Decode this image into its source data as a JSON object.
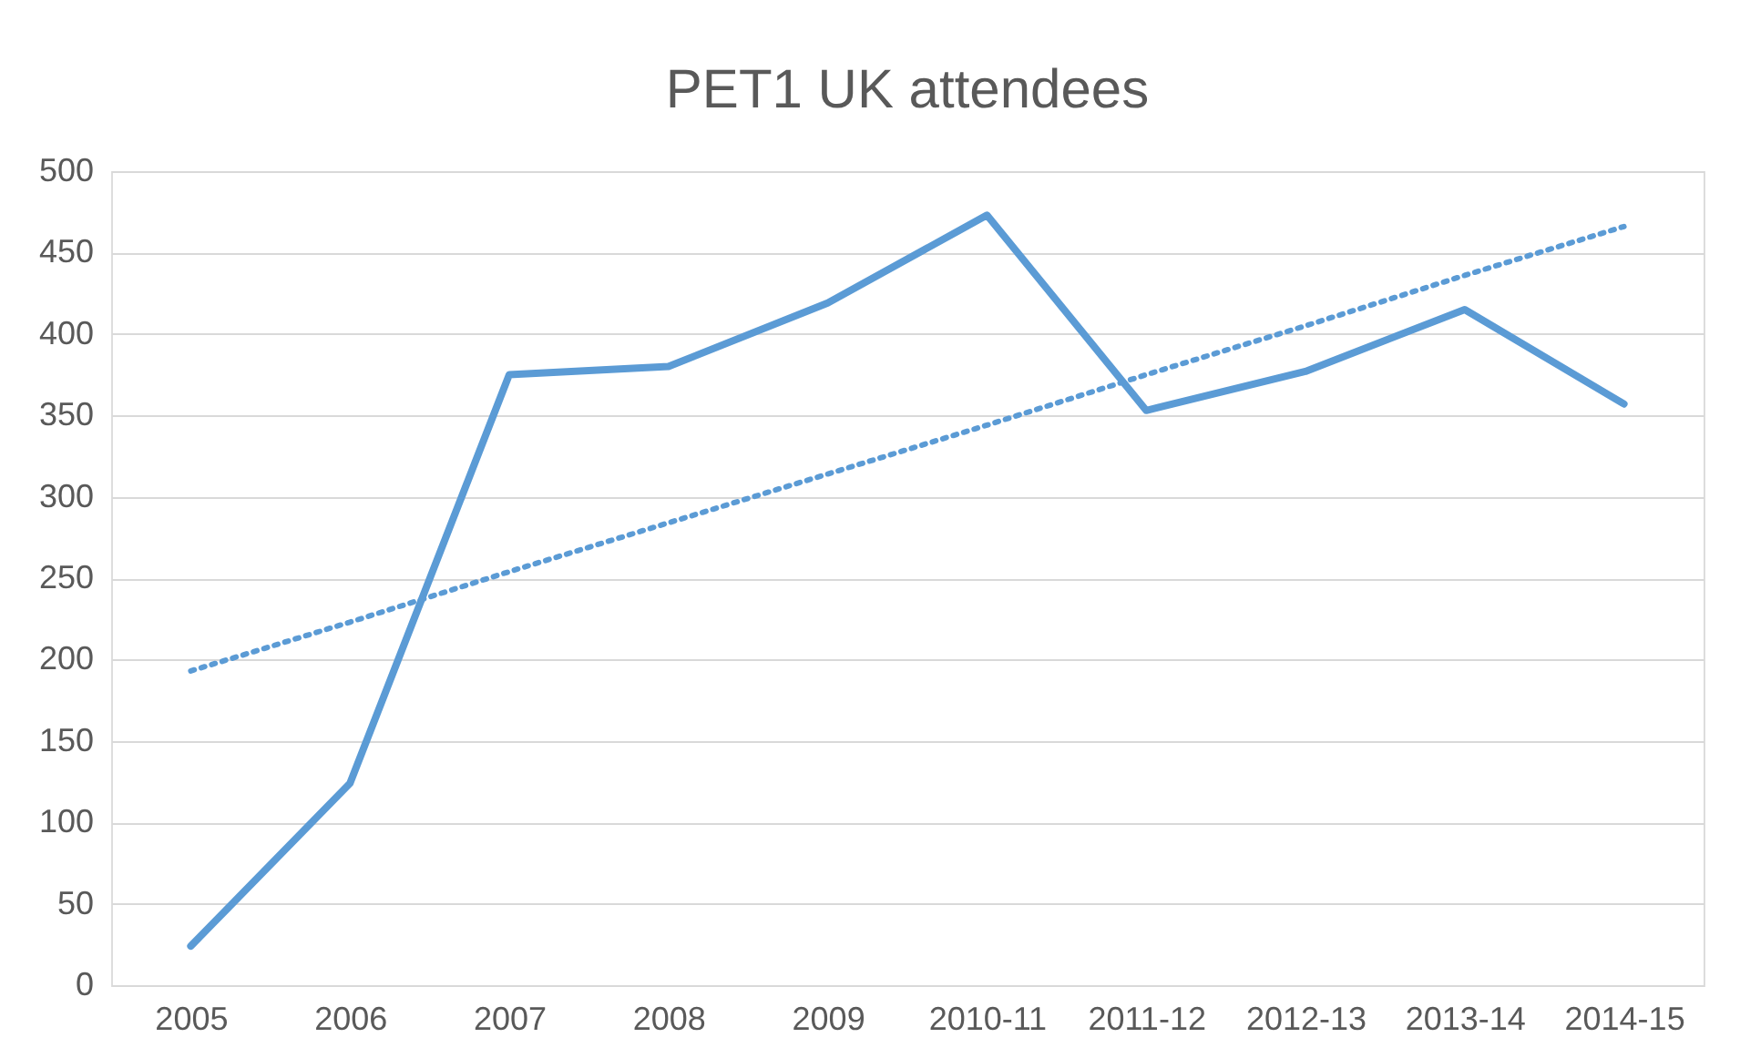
{
  "chart_data": {
    "type": "line",
    "title": "PET1 UK attendees",
    "categories": [
      "2005",
      "2006",
      "2007",
      "2008",
      "2009",
      "2010-11",
      "2011-12",
      "2012-13",
      "2013-14",
      "2014-15"
    ],
    "series": [
      {
        "color": "#5b9bd5",
        "values": [
          24,
          124,
          375,
          380,
          419,
          473,
          353,
          377,
          415,
          357
        ]
      },
      {
        "type": "line",
        "values": [
          193,
          223,
          254,
          284,
          314,
          344,
          375,
          405,
          436,
          466
        ],
        "color": "#5b9bd5",
        "line_style": "dotted"
      }
    ],
    "ylim": [
      0,
      500
    ],
    "yticks": [
      0,
      50,
      100,
      150,
      200,
      250,
      300,
      350,
      400,
      450,
      500
    ],
    "grid": "y",
    "marker": "none",
    "line_style": "solid"
  }
}
